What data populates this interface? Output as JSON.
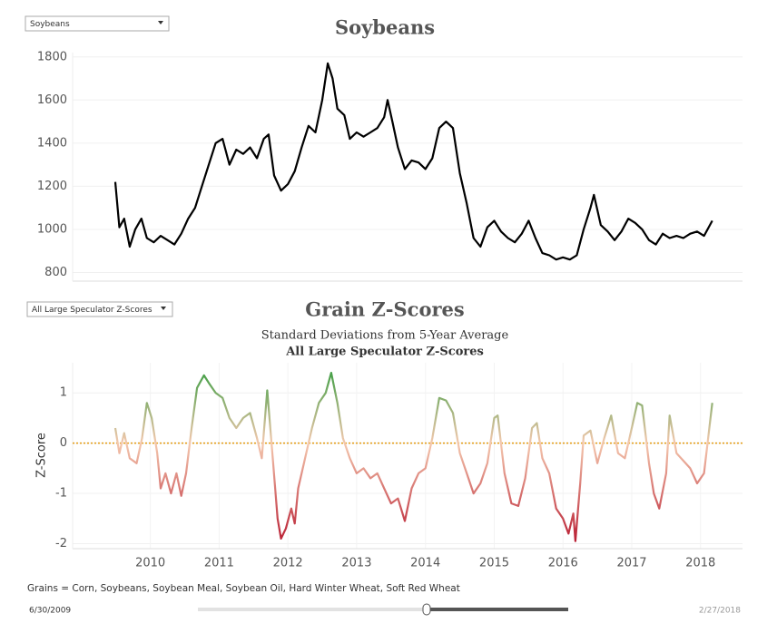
{
  "controls": {
    "commodity_filter": "Soybeans",
    "measure_filter": "All Large Speculator Z-Scores",
    "date_start": "6/30/2009",
    "date_end": "2/27/2018"
  },
  "footnote": "Grains = Corn, Soybeans, Soybean Meal, Soybean Oil, Hard Winter Wheat, Soft Red Wheat",
  "chart_data": [
    {
      "type": "line",
      "title": "Soybeans",
      "color": "#000000",
      "grid": true,
      "xlim": [
        2008.87,
        2018.61
      ],
      "ylim": [
        760,
        1820
      ],
      "yticks": [
        800,
        1000,
        1200,
        1400,
        1600,
        1800
      ],
      "x": [
        2009.49,
        2009.55,
        2009.62,
        2009.7,
        2009.78,
        2009.87,
        2009.95,
        2010.05,
        2010.15,
        2010.25,
        2010.35,
        2010.45,
        2010.55,
        2010.65,
        2010.75,
        2010.85,
        2010.95,
        2011.05,
        2011.15,
        2011.25,
        2011.35,
        2011.45,
        2011.55,
        2011.65,
        2011.72,
        2011.8,
        2011.9,
        2012.0,
        2012.1,
        2012.2,
        2012.3,
        2012.4,
        2012.5,
        2012.58,
        2012.65,
        2012.72,
        2012.82,
        2012.9,
        2013.0,
        2013.1,
        2013.2,
        2013.3,
        2013.4,
        2013.45,
        2013.52,
        2013.6,
        2013.7,
        2013.8,
        2013.9,
        2014.0,
        2014.1,
        2014.2,
        2014.3,
        2014.4,
        2014.5,
        2014.6,
        2014.7,
        2014.8,
        2014.9,
        2015.0,
        2015.1,
        2015.2,
        2015.3,
        2015.4,
        2015.5,
        2015.6,
        2015.7,
        2015.8,
        2015.9,
        2016.0,
        2016.1,
        2016.2,
        2016.3,
        2016.4,
        2016.45,
        2016.55,
        2016.65,
        2016.75,
        2016.85,
        2016.95,
        2017.05,
        2017.15,
        2017.25,
        2017.35,
        2017.45,
        2017.55,
        2017.65,
        2017.75,
        2017.85,
        2017.95,
        2018.05,
        2018.17
      ],
      "values": [
        1220,
        1010,
        1050,
        920,
        1000,
        1050,
        960,
        940,
        970,
        950,
        930,
        980,
        1050,
        1100,
        1200,
        1300,
        1400,
        1420,
        1300,
        1370,
        1350,
        1380,
        1330,
        1420,
        1440,
        1250,
        1180,
        1210,
        1270,
        1380,
        1480,
        1450,
        1600,
        1770,
        1700,
        1560,
        1530,
        1420,
        1450,
        1430,
        1450,
        1470,
        1520,
        1600,
        1500,
        1380,
        1280,
        1320,
        1310,
        1280,
        1330,
        1470,
        1500,
        1470,
        1260,
        1120,
        960,
        920,
        1010,
        1040,
        990,
        960,
        940,
        980,
        1040,
        960,
        890,
        880,
        860,
        870,
        860,
        880,
        1000,
        1100,
        1160,
        1020,
        990,
        950,
        990,
        1050,
        1030,
        1000,
        950,
        930,
        980,
        960,
        970,
        960,
        980,
        990,
        970,
        1040
      ]
    },
    {
      "type": "line",
      "title": "Grain Z-Scores",
      "subtitle": "Standard Deviations from 5-Year Average",
      "subtitle2": "All Large Speculator Z-Scores",
      "ylabel": "Z-Score",
      "grid": true,
      "color_scale": {
        "high": "#2e9a3a",
        "mid": "#f4c8ae",
        "low": "#b5122a"
      },
      "reference_line": 0,
      "reference_color": "#e39a10",
      "xlim": [
        2008.87,
        2018.61
      ],
      "xticks": [
        2010,
        2011,
        2012,
        2013,
        2014,
        2015,
        2016,
        2017,
        2018
      ],
      "ylim": [
        -2.1,
        1.6
      ],
      "yticks": [
        -2,
        -1,
        0,
        1
      ],
      "x": [
        2009.49,
        2009.55,
        2009.62,
        2009.7,
        2009.8,
        2009.88,
        2009.95,
        2010.02,
        2010.1,
        2010.15,
        2010.22,
        2010.3,
        2010.38,
        2010.45,
        2010.52,
        2010.6,
        2010.68,
        2010.78,
        2010.85,
        2010.95,
        2011.05,
        2011.15,
        2011.25,
        2011.35,
        2011.45,
        2011.55,
        2011.62,
        2011.7,
        2011.78,
        2011.85,
        2011.9,
        2011.97,
        2012.05,
        2012.1,
        2012.15,
        2012.25,
        2012.35,
        2012.45,
        2012.55,
        2012.63,
        2012.72,
        2012.8,
        2012.9,
        2013.0,
        2013.1,
        2013.2,
        2013.3,
        2013.4,
        2013.5,
        2013.6,
        2013.7,
        2013.8,
        2013.9,
        2014.0,
        2014.1,
        2014.2,
        2014.3,
        2014.4,
        2014.5,
        2014.6,
        2014.7,
        2014.8,
        2014.9,
        2015.0,
        2015.05,
        2015.15,
        2015.25,
        2015.35,
        2015.45,
        2015.55,
        2015.62,
        2015.7,
        2015.8,
        2015.9,
        2016.0,
        2016.08,
        2016.15,
        2016.18,
        2016.25,
        2016.3,
        2016.4,
        2016.5,
        2016.6,
        2016.7,
        2016.8,
        2016.9,
        2017.0,
        2017.08,
        2017.15,
        2017.25,
        2017.32,
        2017.4,
        2017.5,
        2017.55,
        2017.65,
        2017.75,
        2017.85,
        2017.95,
        2018.05,
        2018.17
      ],
      "values": [
        0.3,
        -0.2,
        0.2,
        -0.3,
        -0.4,
        0.1,
        0.8,
        0.5,
        -0.2,
        -0.9,
        -0.6,
        -1.0,
        -0.6,
        -1.05,
        -0.6,
        0.3,
        1.1,
        1.35,
        1.2,
        1.0,
        0.9,
        0.5,
        0.3,
        0.5,
        0.6,
        0.1,
        -0.3,
        1.05,
        -0.3,
        -1.5,
        -1.9,
        -1.7,
        -1.3,
        -1.6,
        -0.9,
        -0.3,
        0.3,
        0.8,
        1.0,
        1.4,
        0.8,
        0.1,
        -0.3,
        -0.6,
        -0.5,
        -0.7,
        -0.6,
        -0.9,
        -1.2,
        -1.1,
        -1.55,
        -0.9,
        -0.6,
        -0.5,
        0.1,
        0.9,
        0.85,
        0.6,
        -0.2,
        -0.6,
        -1.0,
        -0.8,
        -0.4,
        0.5,
        0.55,
        -0.6,
        -1.2,
        -1.25,
        -0.7,
        0.3,
        0.4,
        -0.3,
        -0.6,
        -1.3,
        -1.5,
        -1.8,
        -1.4,
        -1.95,
        -0.8,
        0.15,
        0.25,
        -0.4,
        0.1,
        0.55,
        -0.2,
        -0.3,
        0.3,
        0.8,
        0.75,
        -0.4,
        -1.0,
        -1.3,
        -0.6,
        0.55,
        -0.2,
        -0.35,
        -0.5,
        -0.8,
        -0.6,
        0.8
      ]
    }
  ]
}
